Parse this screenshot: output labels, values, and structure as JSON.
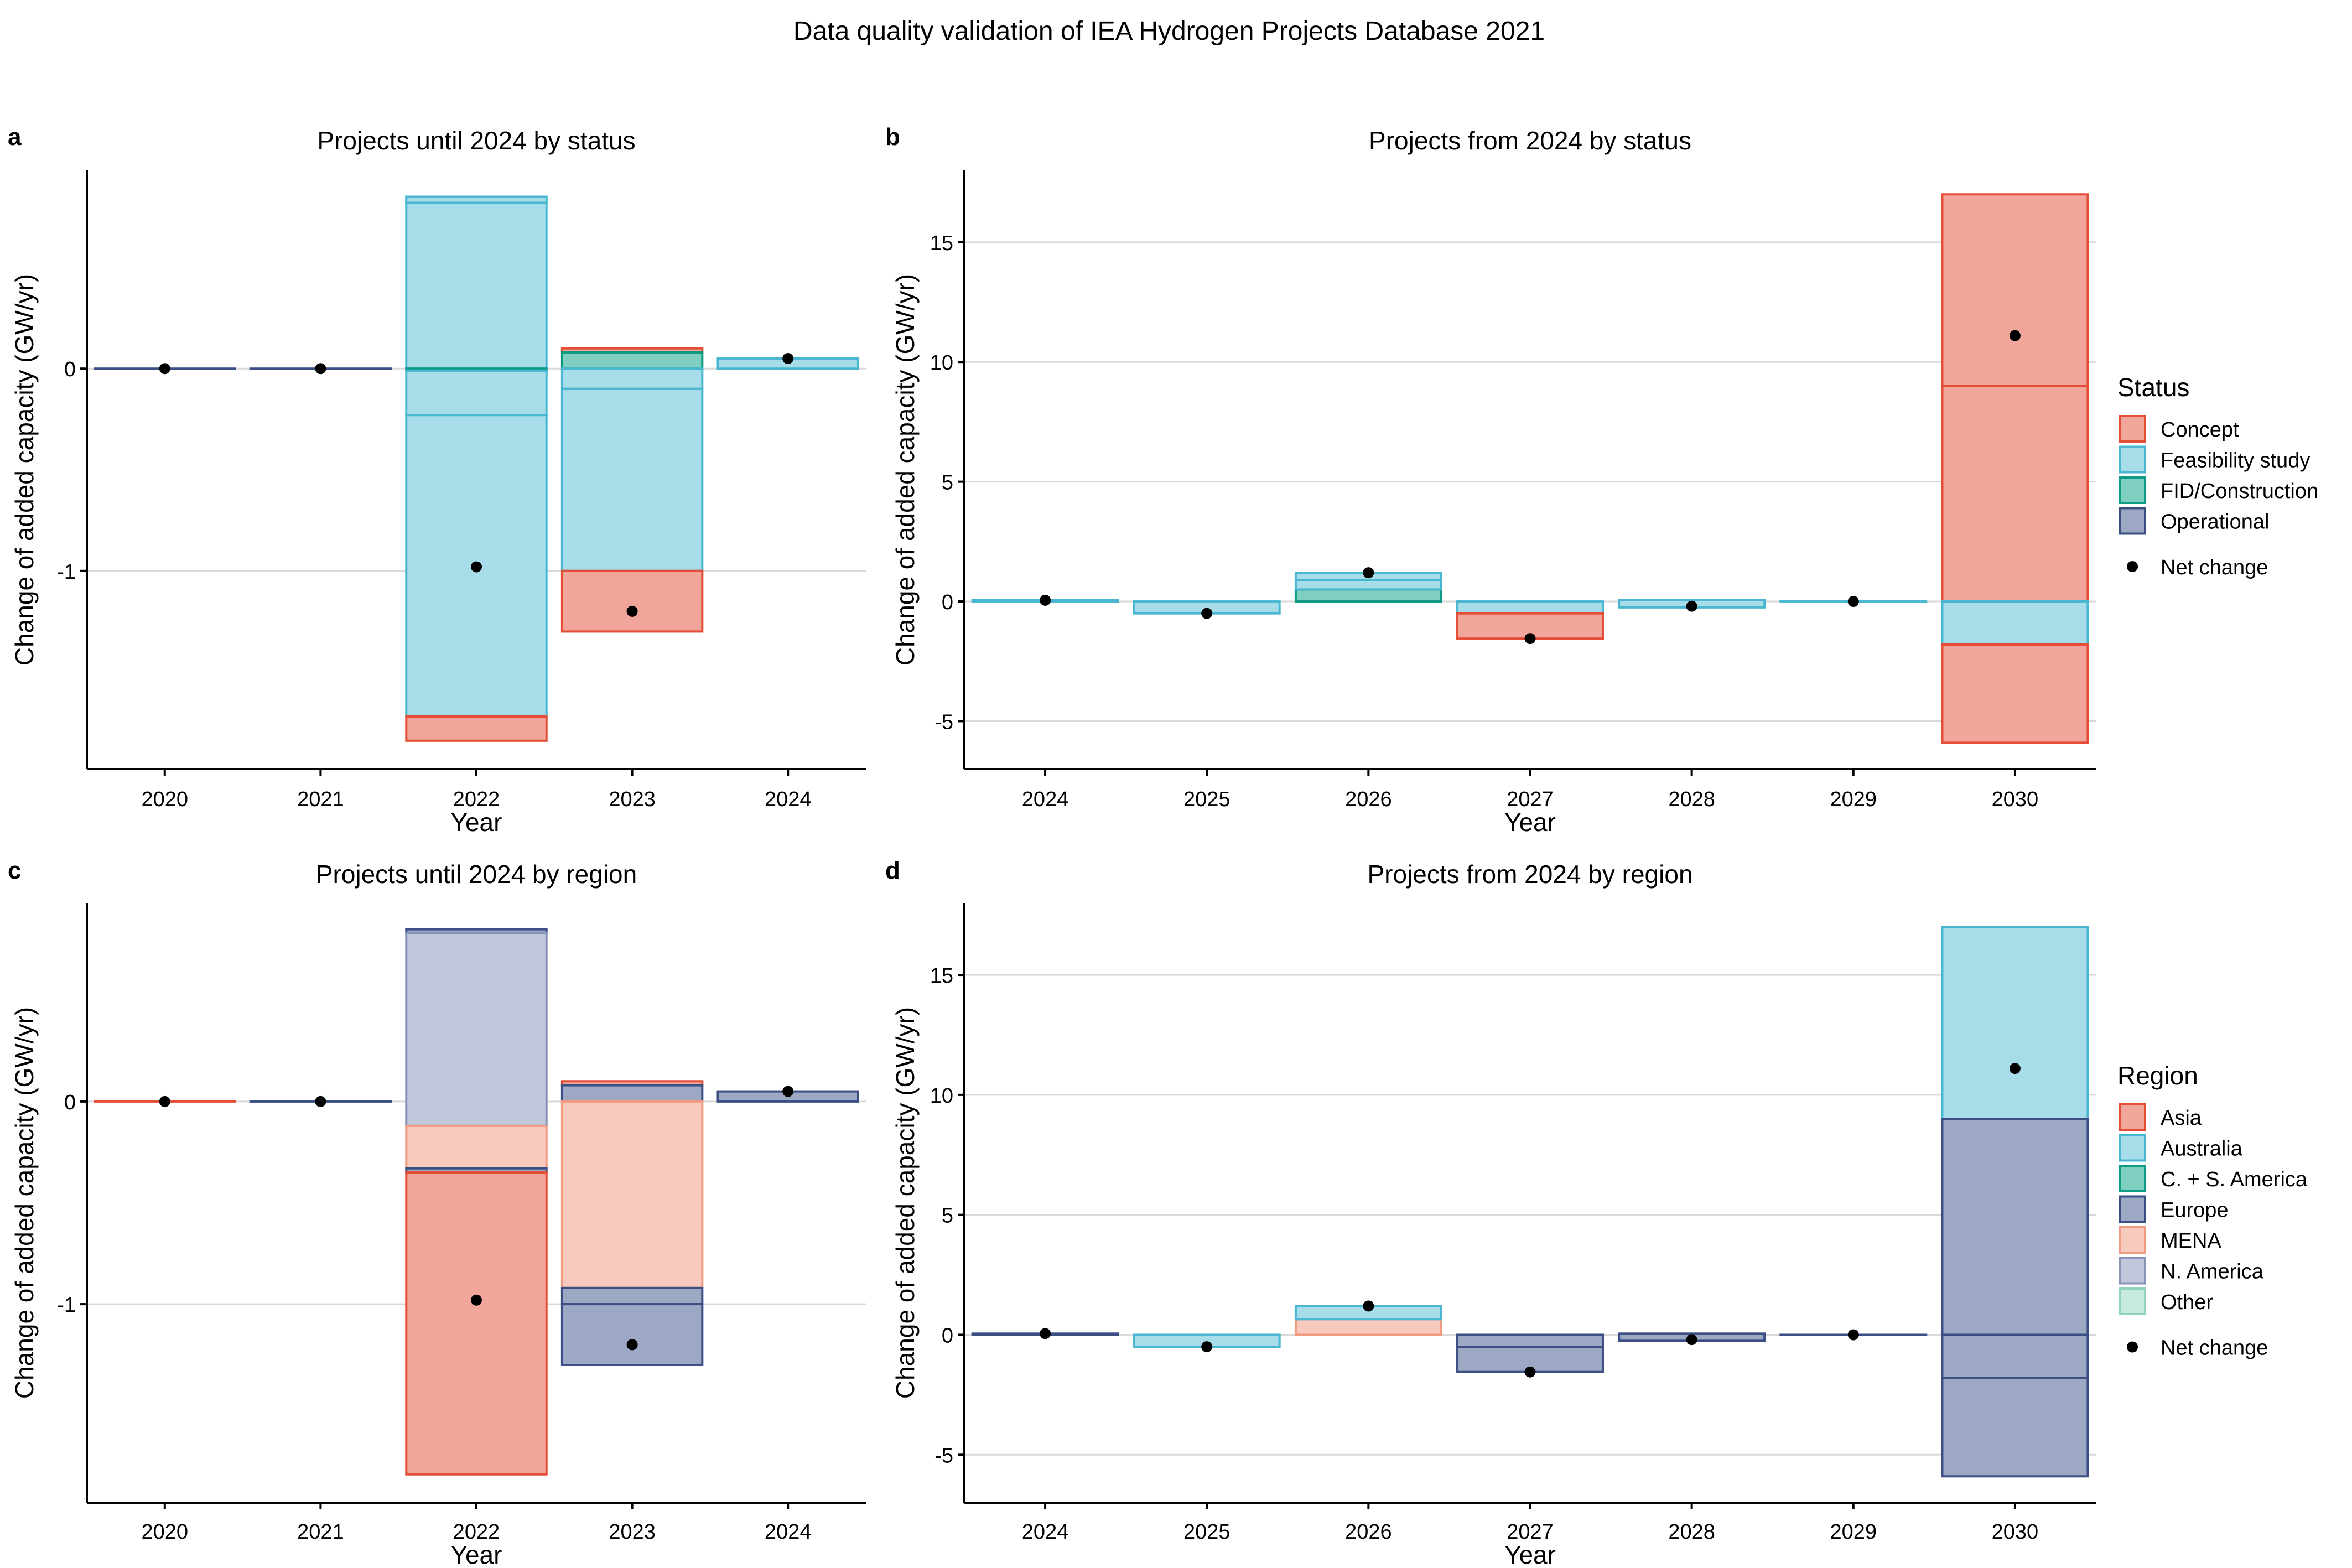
{
  "title": "Data quality validation of IEA Hydrogen Projects Database 2021",
  "colors": {
    "Concept": {
      "fill": "#f2a59a",
      "stroke": "#e44d36"
    },
    "Feasibility study": {
      "fill": "#a6dde9",
      "stroke": "#49b7d1"
    },
    "FID/Construction": {
      "fill": "#7ecfc0",
      "stroke": "#0f9a83"
    },
    "Operational": {
      "fill": "#9ca8c4",
      "stroke": "#3b4f85"
    },
    "Asia": {
      "fill": "#f2a59a",
      "stroke": "#e44d36"
    },
    "Australia": {
      "fill": "#a6dde9",
      "stroke": "#49b7d1"
    },
    "C. + S. America": {
      "fill": "#7ecfc0",
      "stroke": "#0f9a83"
    },
    "Europe": {
      "fill": "#9ca8c4",
      "stroke": "#3b4f85"
    },
    "MENA": {
      "fill": "#f8cabe",
      "stroke": "#f19a80"
    },
    "N. America": {
      "fill": "#c2c8db",
      "stroke": "#8793b8"
    },
    "Other": {
      "fill": "#c7eadf",
      "stroke": "#8ed3bd"
    }
  },
  "legends": [
    {
      "title": "Status",
      "items": [
        "Concept",
        "Feasibility study",
        "FID/Construction",
        "Operational"
      ],
      "net_label": "Net change"
    },
    {
      "title": "Region",
      "items": [
        "Asia",
        "Australia",
        "C. + S. America",
        "Europe",
        "MENA",
        "N. America",
        "Other"
      ],
      "net_label": "Net change"
    }
  ],
  "chart_data": [
    {
      "panel_label": "a",
      "type": "bar",
      "stacked": "waterfall",
      "title": "Projects until 2024 by status",
      "xlabel": "Year",
      "ylabel": "Change of added capacity (GW/yr)",
      "categories": [
        "2020",
        "2021",
        "2022",
        "2023",
        "2024"
      ],
      "ylim": [
        -1.98,
        0.98
      ],
      "yticks": [
        0,
        -1
      ],
      "ytick_labels": [
        "0",
        "-1"
      ],
      "bars": [
        {
          "x": "2020",
          "segments": [
            {
              "series": "Operational",
              "from": 0,
              "to": 0
            }
          ],
          "net": 0
        },
        {
          "x": "2021",
          "segments": [
            {
              "series": "Operational",
              "from": 0,
              "to": 0
            }
          ],
          "net": 0
        },
        {
          "x": "2022",
          "segments": [
            {
              "series": "Feasibility study",
              "from": 0,
              "to": 0.85
            },
            {
              "series": "Feasibility study",
              "from": 0.82,
              "to": 0.85
            },
            {
              "series": "FID/Construction",
              "from": -0.01,
              "to": 0
            },
            {
              "series": "Feasibility study",
              "from": -0.01,
              "to": -0.23
            },
            {
              "series": "Feasibility study",
              "from": -0.23,
              "to": -1.72
            },
            {
              "series": "Concept",
              "from": -1.72,
              "to": -1.84
            }
          ],
          "net": -0.98
        },
        {
          "x": "2023",
          "segments": [
            {
              "series": "Concept",
              "from": 0.08,
              "to": 0.1
            },
            {
              "series": "FID/Construction",
              "from": 0,
              "to": 0.08
            },
            {
              "series": "Feasibility study",
              "from": 0,
              "to": -0.1
            },
            {
              "series": "Feasibility study",
              "from": -0.1,
              "to": -1.0
            },
            {
              "series": "Concept",
              "from": -1.0,
              "to": -1.3
            }
          ],
          "net": -1.2
        },
        {
          "x": "2024",
          "segments": [
            {
              "series": "Feasibility study",
              "from": 0,
              "to": 0.05
            }
          ],
          "net": 0.05
        }
      ]
    },
    {
      "panel_label": "b",
      "type": "bar",
      "stacked": "waterfall",
      "title": "Projects from 2024 by status",
      "xlabel": "Year",
      "ylabel": "Change of added capacity (GW/yr)",
      "categories": [
        "2024",
        "2025",
        "2026",
        "2027",
        "2028",
        "2029",
        "2030"
      ],
      "ylim": [
        -7,
        18
      ],
      "yticks": [
        15,
        10,
        5,
        0,
        -5
      ],
      "ytick_labels": [
        "15",
        "10",
        "5",
        "0",
        "-5"
      ],
      "bars": [
        {
          "x": "2024",
          "segments": [
            {
              "series": "Feasibility study",
              "from": 0,
              "to": 0.05
            }
          ],
          "net": 0.05
        },
        {
          "x": "2025",
          "segments": [
            {
              "series": "Feasibility study",
              "from": 0,
              "to": -0.5
            }
          ],
          "net": -0.5
        },
        {
          "x": "2026",
          "segments": [
            {
              "series": "FID/Construction",
              "from": 0,
              "to": 0.5
            },
            {
              "series": "Feasibility study",
              "from": 0.5,
              "to": 0.9
            },
            {
              "series": "Feasibility study",
              "from": 0.9,
              "to": 1.2
            }
          ],
          "net": 1.2
        },
        {
          "x": "2027",
          "segments": [
            {
              "series": "Feasibility study",
              "from": 0,
              "to": -0.5
            },
            {
              "series": "Concept",
              "from": -0.5,
              "to": -1.55
            }
          ],
          "net": -1.55
        },
        {
          "x": "2028",
          "segments": [
            {
              "series": "Feasibility study",
              "from": 0.05,
              "to": -0.25
            }
          ],
          "net": -0.2
        },
        {
          "x": "2029",
          "segments": [
            {
              "series": "Feasibility study",
              "from": 0,
              "to": 0
            }
          ],
          "net": 0
        },
        {
          "x": "2030",
          "segments": [
            {
              "series": "Concept",
              "from": 9,
              "to": 17
            },
            {
              "series": "Concept",
              "from": 0,
              "to": 9
            },
            {
              "series": "Feasibility study",
              "from": 0,
              "to": -1.8
            },
            {
              "series": "Concept",
              "from": -1.8,
              "to": -5.9
            }
          ],
          "net": 11.1
        }
      ]
    },
    {
      "panel_label": "c",
      "type": "bar",
      "stacked": "waterfall",
      "title": "Projects until 2024 by region",
      "xlabel": "Year",
      "ylabel": "Change of added capacity (GW/yr)",
      "categories": [
        "2020",
        "2021",
        "2022",
        "2023",
        "2024"
      ],
      "ylim": [
        -1.98,
        0.98
      ],
      "yticks": [
        0,
        -1
      ],
      "ytick_labels": [
        "0",
        "-1"
      ],
      "bars": [
        {
          "x": "2020",
          "segments": [
            {
              "series": "Asia",
              "from": 0,
              "to": 0
            }
          ],
          "net": 0
        },
        {
          "x": "2021",
          "segments": [
            {
              "series": "Europe",
              "from": 0,
              "to": 0
            }
          ],
          "net": 0
        },
        {
          "x": "2022",
          "segments": [
            {
              "series": "Europe",
              "from": 0.83,
              "to": 0.85
            },
            {
              "series": "N. America",
              "from": -0.12,
              "to": 0.83
            },
            {
              "series": "MENA",
              "from": -0.12,
              "to": -0.33
            },
            {
              "series": "Europe",
              "from": -0.33,
              "to": -0.35
            },
            {
              "series": "Asia",
              "from": -0.35,
              "to": -1.84
            }
          ],
          "net": -0.98
        },
        {
          "x": "2023",
          "segments": [
            {
              "series": "Asia",
              "from": 0.08,
              "to": 0.1
            },
            {
              "series": "Europe",
              "from": 0,
              "to": 0.08
            },
            {
              "series": "MENA",
              "from": 0,
              "to": -0.92
            },
            {
              "series": "Europe",
              "from": -0.92,
              "to": -1.0
            },
            {
              "series": "Europe",
              "from": -1.0,
              "to": -1.3
            }
          ],
          "net": -1.2
        },
        {
          "x": "2024",
          "segments": [
            {
              "series": "Europe",
              "from": 0,
              "to": 0.05
            }
          ],
          "net": 0.05
        }
      ]
    },
    {
      "panel_label": "d",
      "type": "bar",
      "stacked": "waterfall",
      "title": "Projects from 2024 by region",
      "xlabel": "Year",
      "ylabel": "Change of added capacity (GW/yr)",
      "categories": [
        "2024",
        "2025",
        "2026",
        "2027",
        "2028",
        "2029",
        "2030"
      ],
      "ylim": [
        -7,
        18
      ],
      "yticks": [
        15,
        10,
        5,
        0,
        -5
      ],
      "ytick_labels": [
        "15",
        "10",
        "5",
        "0",
        "-5"
      ],
      "bars": [
        {
          "x": "2024",
          "segments": [
            {
              "series": "Europe",
              "from": 0,
              "to": 0.05
            }
          ],
          "net": 0.05
        },
        {
          "x": "2025",
          "segments": [
            {
              "series": "Australia",
              "from": 0,
              "to": -0.5
            }
          ],
          "net": -0.5
        },
        {
          "x": "2026",
          "segments": [
            {
              "series": "MENA",
              "from": 0,
              "to": 0.65
            },
            {
              "series": "Australia",
              "from": 0.65,
              "to": 1.2
            }
          ],
          "net": 1.2
        },
        {
          "x": "2027",
          "segments": [
            {
              "series": "Europe",
              "from": 0,
              "to": -0.5
            },
            {
              "series": "Europe",
              "from": -0.5,
              "to": -1.55
            }
          ],
          "net": -1.55
        },
        {
          "x": "2028",
          "segments": [
            {
              "series": "Europe",
              "from": 0.05,
              "to": -0.25
            }
          ],
          "net": -0.2
        },
        {
          "x": "2029",
          "segments": [
            {
              "series": "Europe",
              "from": 0,
              "to": 0
            }
          ],
          "net": 0
        },
        {
          "x": "2030",
          "segments": [
            {
              "series": "Australia",
              "from": 9,
              "to": 17
            },
            {
              "series": "Europe",
              "from": 0,
              "to": 9
            },
            {
              "series": "Europe",
              "from": 0,
              "to": -1.8
            },
            {
              "series": "Europe",
              "from": -1.8,
              "to": -5.9
            }
          ],
          "net": 11.1
        }
      ]
    }
  ]
}
